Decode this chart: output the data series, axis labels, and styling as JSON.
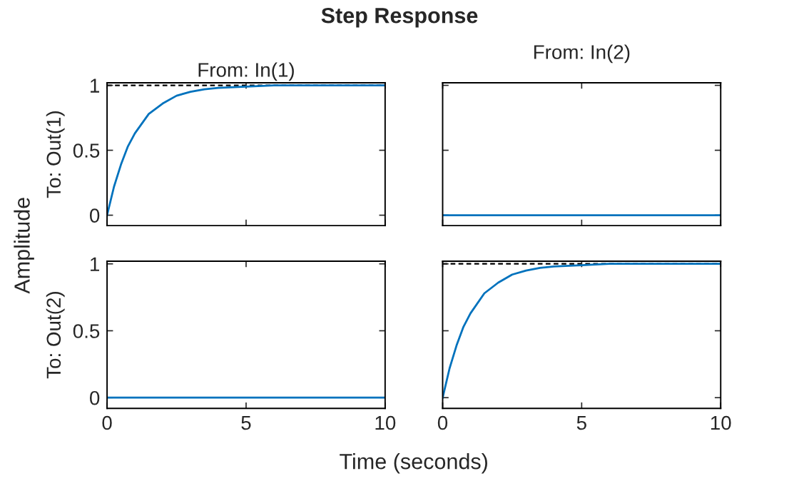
{
  "chart_data": [
    {
      "type": "line",
      "title": "Step Response",
      "subtitle": "From: In(1)",
      "ylabel": "To: Out(1)",
      "annotations": [
        "Amplitude"
      ],
      "x": [
        0,
        0.25,
        0.5,
        0.75,
        1,
        1.5,
        2,
        2.5,
        3,
        3.5,
        4,
        5,
        6,
        8,
        10
      ],
      "series": [
        {
          "color": "#0072bd",
          "values": [
            0,
            0.22,
            0.39,
            0.53,
            0.63,
            0.78,
            0.86,
            0.92,
            0.95,
            0.97,
            0.98,
            0.99,
            1,
            1,
            1
          ]
        }
      ],
      "ref_lines": [
        {
          "axis": "y",
          "value": 1,
          "color": "#000000",
          "line_style": "dashed"
        }
      ],
      "xlim": [
        0,
        10
      ],
      "xticks": [
        0,
        5,
        10
      ],
      "ylim": [
        -0.08,
        1.02
      ],
      "yticks": [
        0,
        0.5,
        1
      ],
      "tick_labels": "y"
    },
    {
      "type": "line",
      "subtitle": "From: In(2)",
      "x": [
        0,
        10
      ],
      "series": [
        {
          "color": "#0072bd",
          "values": [
            0,
            0
          ]
        }
      ],
      "xlim": [
        0,
        10
      ],
      "xticks": [
        0,
        5,
        10
      ],
      "ylim": [
        -0.08,
        1.02
      ],
      "yticks": [
        0,
        0.5,
        1
      ],
      "tick_labels": false
    },
    {
      "type": "line",
      "ylabel": "To: Out(2)",
      "xlabel": "Time (seconds)",
      "x": [
        0,
        10
      ],
      "series": [
        {
          "color": "#0072bd",
          "values": [
            0,
            0
          ]
        }
      ],
      "xlim": [
        0,
        10
      ],
      "xticks": [
        0,
        5,
        10
      ],
      "ylim": [
        -0.08,
        1.02
      ],
      "yticks": [
        0,
        0.5,
        1
      ]
    },
    {
      "type": "line",
      "x": [
        0,
        0.25,
        0.5,
        0.75,
        1,
        1.5,
        2,
        2.5,
        3,
        3.5,
        4,
        5,
        6,
        8,
        10
      ],
      "series": [
        {
          "color": "#0072bd",
          "values": [
            0,
            0.22,
            0.39,
            0.53,
            0.63,
            0.78,
            0.86,
            0.92,
            0.95,
            0.97,
            0.98,
            0.99,
            1,
            1,
            1
          ]
        }
      ],
      "ref_lines": [
        {
          "axis": "y",
          "value": 1,
          "color": "#000000",
          "line_style": "dashed"
        }
      ],
      "xlim": [
        0,
        10
      ],
      "xticks": [
        0,
        5,
        10
      ],
      "ylim": [
        -0.08,
        1.02
      ],
      "yticks": [
        0,
        0.5,
        1
      ],
      "tick_labels": "x"
    }
  ]
}
